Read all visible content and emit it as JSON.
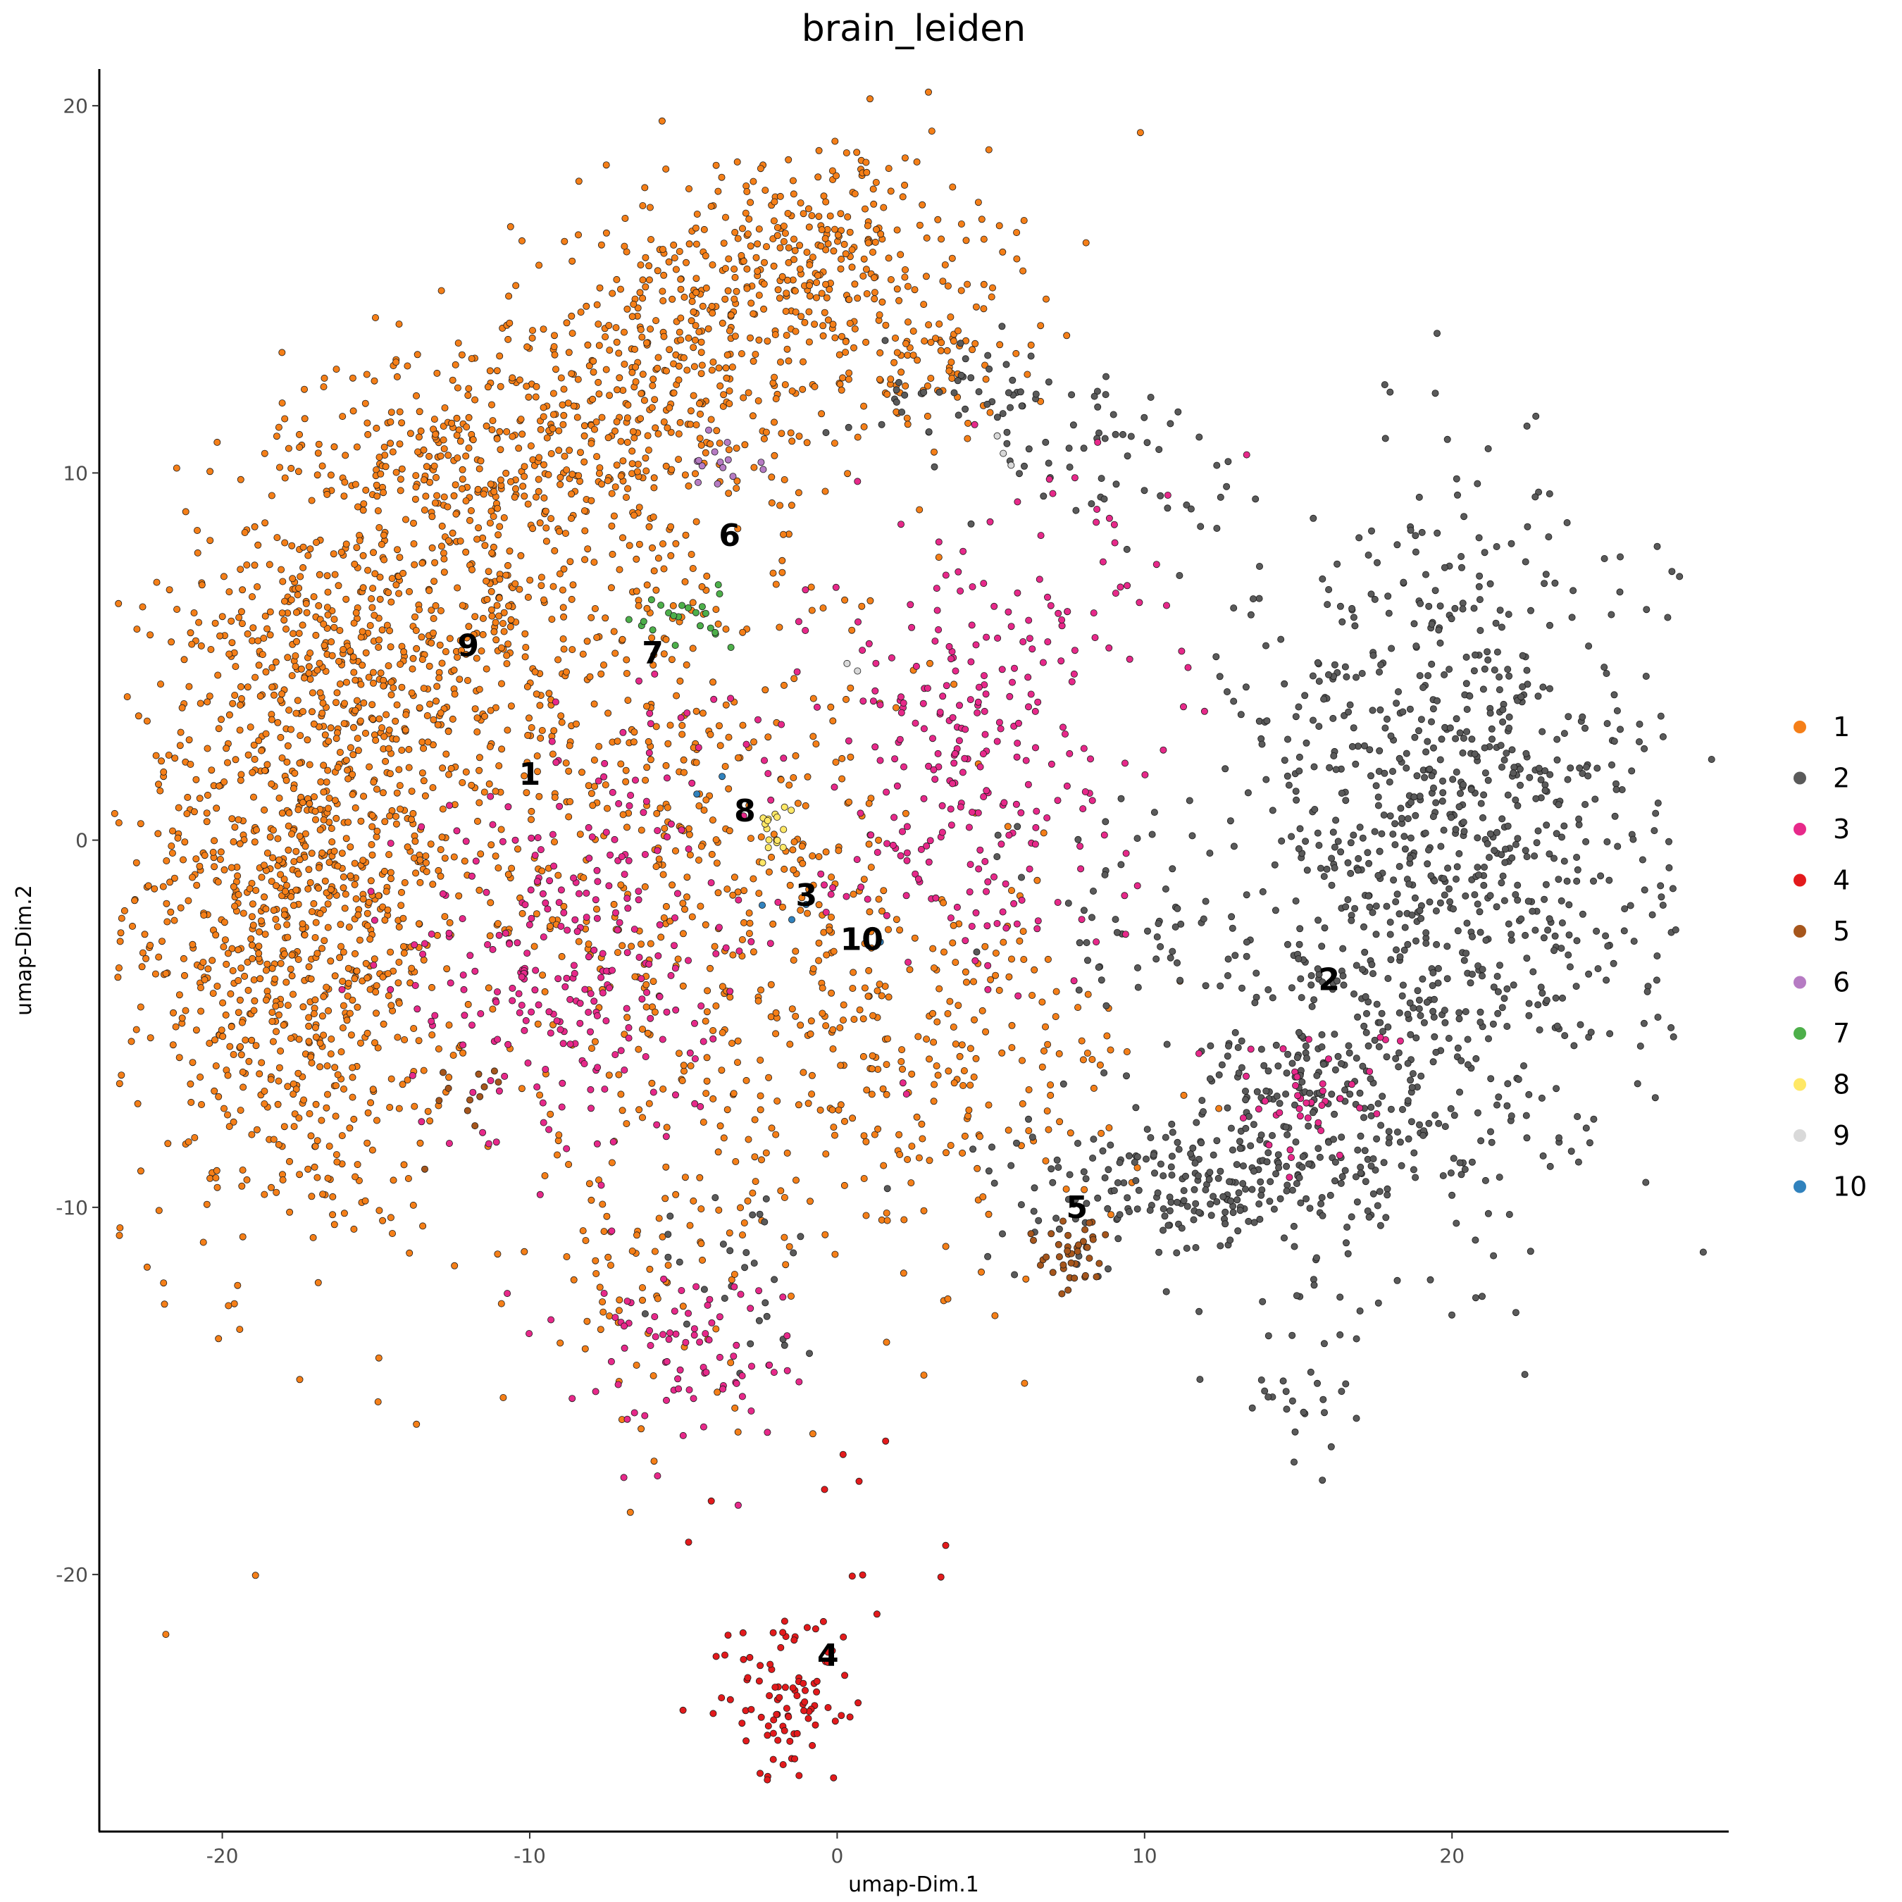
{
  "chart_data": {
    "type": "scatter",
    "title": "brain_leiden",
    "xlabel": "umap-Dim.1",
    "ylabel": "umap-Dim.2",
    "xlim": [
      -24,
      29
    ],
    "ylim": [
      -27,
      21
    ],
    "xticks": [
      -20,
      -10,
      0,
      10,
      20
    ],
    "yticks": [
      20,
      10,
      0,
      -10,
      -20
    ],
    "grid": false,
    "legend_position": "right",
    "series": [
      {
        "name": "1",
        "color": "#F57F18",
        "label_at": [
          -10,
          1.8
        ],
        "blobs": [
          {
            "c": [
              -17.5,
              -1.5
            ],
            "s": [
              2.8,
              4.8
            ],
            "n": 1100
          },
          {
            "c": [
              -13,
              6
            ],
            "s": [
              3.5,
              3
            ],
            "n": 500
          },
          {
            "c": [
              -11,
              10.5
            ],
            "s": [
              3.5,
              1.5
            ],
            "n": 300
          },
          {
            "c": [
              -5,
              13
            ],
            "s": [
              3,
              1.8
            ],
            "n": 300
          },
          {
            "c": [
              -1,
              16
            ],
            "s": [
              3,
              1.5
            ],
            "n": 300
          },
          {
            "c": [
              3,
              13
            ],
            "s": [
              2,
              1
            ],
            "n": 80
          },
          {
            "c": [
              -5,
              0
            ],
            "s": [
              4,
              4
            ],
            "n": 450
          },
          {
            "c": [
              2,
              -6
            ],
            "s": [
              4,
              2.5
            ],
            "n": 300
          },
          {
            "c": [
              -6,
              -12
            ],
            "s": [
              2,
              2
            ],
            "n": 80
          }
        ]
      },
      {
        "name": "2",
        "color": "#5A5A5A",
        "label_at": [
          16,
          -3.8
        ],
        "blobs": [
          {
            "c": [
              20,
              0
            ],
            "s": [
              3.5,
              4.5
            ],
            "n": 900
          },
          {
            "c": [
              16,
              -7
            ],
            "s": [
              2.5,
              2
            ],
            "n": 250
          },
          {
            "c": [
              11,
              -9.5
            ],
            "s": [
              3,
              1
            ],
            "n": 200
          },
          {
            "c": [
              9,
              10.5
            ],
            "s": [
              2,
              1.5
            ],
            "n": 60
          },
          {
            "c": [
              4.5,
              12.3
            ],
            "s": [
              2,
              0.6
            ],
            "n": 40
          },
          {
            "c": [
              15,
              -15
            ],
            "s": [
              1,
              1
            ],
            "n": 30
          },
          {
            "c": [
              10,
              -2
            ],
            "s": [
              2,
              2
            ],
            "n": 50
          },
          {
            "c": [
              -3,
              -12
            ],
            "s": [
              1.5,
              1.5
            ],
            "n": 30
          }
        ]
      },
      {
        "name": "3",
        "color": "#E7298A",
        "label_at": [
          -1,
          -1.5
        ],
        "blobs": [
          {
            "c": [
              -9,
              -3.5
            ],
            "s": [
              2.5,
              2.5
            ],
            "n": 250
          },
          {
            "c": [
              4,
              2.5
            ],
            "s": [
              2.5,
              3
            ],
            "n": 260
          },
          {
            "c": [
              -5,
              -14
            ],
            "s": [
              1.8,
              1.2
            ],
            "n": 80
          },
          {
            "c": [
              15.5,
              -7
            ],
            "s": [
              1.5,
              1
            ],
            "n": 40
          },
          {
            "c": [
              9,
              7
            ],
            "s": [
              2,
              2
            ],
            "n": 30
          },
          {
            "c": [
              -6,
              1.5
            ],
            "s": [
              2,
              2
            ],
            "n": 40
          }
        ]
      },
      {
        "name": "4",
        "color": "#E31A1C",
        "label_at": [
          -0.3,
          -22.2
        ],
        "blobs": [
          {
            "c": [
              -1.5,
              -23.5
            ],
            "s": [
              1.2,
              1.1
            ],
            "n": 90
          },
          {
            "c": [
              0,
              -19
            ],
            "s": [
              2.5,
              2
            ],
            "n": 12
          }
        ]
      },
      {
        "name": "5",
        "color": "#A6561C",
        "label_at": [
          7.8,
          -10
        ],
        "blobs": [
          {
            "c": [
              7.5,
              -11.3
            ],
            "s": [
              0.6,
              0.5
            ],
            "n": 40
          },
          {
            "c": [
              -12.5,
              -7
            ],
            "s": [
              1,
              1
            ],
            "n": 12
          }
        ]
      },
      {
        "name": "6",
        "color": "#B67BC3",
        "label_at": [
          -3.5,
          8.3
        ],
        "blobs": [
          {
            "c": [
              -3.5,
              10.2
            ],
            "s": [
              0.6,
              0.6
            ],
            "n": 14
          }
        ]
      },
      {
        "name": "7",
        "color": "#4DAF4A",
        "label_at": [
          -6,
          5.1
        ],
        "blobs": [
          {
            "c": [
              -5,
              6
            ],
            "s": [
              0.8,
              0.4
            ],
            "n": 22
          }
        ]
      },
      {
        "name": "8",
        "color": "#FFE866",
        "label_at": [
          -3,
          0.8
        ],
        "blobs": [
          {
            "c": [
              -2.2,
              0.2
            ],
            "s": [
              0.3,
              0.4
            ],
            "n": 16
          }
        ]
      },
      {
        "name": "9",
        "color": "#D9D9D9",
        "label_at": [
          -12,
          5.3
        ],
        "blobs": [
          {
            "c": [
              5.5,
              10.5
            ],
            "s": [
              0.2,
              0.2
            ],
            "n": 3
          },
          {
            "c": [
              0.5,
              5
            ],
            "s": [
              0.3,
              0.3
            ],
            "n": 2
          }
        ]
      },
      {
        "name": "10",
        "color": "#3182BD",
        "label_at": [
          0.8,
          -2.7
        ],
        "blobs": [
          {
            "c": [
              1,
              -2
            ],
            "s": [
              2.5,
              1
            ],
            "n": 4
          },
          {
            "c": [
              -4,
              1.5
            ],
            "s": [
              0.5,
              0.5
            ],
            "n": 2
          }
        ]
      }
    ]
  }
}
